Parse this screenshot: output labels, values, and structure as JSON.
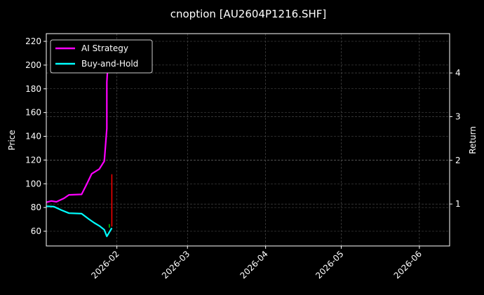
{
  "chart_data": {
    "type": "line",
    "title": "cnoption [AU2604P1216.SHF]",
    "ylabel": "Price",
    "y2label": "Return",
    "xlim": [
      "2026-01-04",
      "2026-06-13"
    ],
    "ylim": [
      47.6,
      226.5
    ],
    "y2lim": [
      0.04,
      4.9
    ],
    "x_ticks": [
      "2026-02-01",
      "2026-03-01",
      "2026-04-01",
      "2026-05-01",
      "2026-06-01"
    ],
    "x_tick_labels": [
      "2026-02",
      "2026-03",
      "2026-04",
      "2026-05",
      "2026-06"
    ],
    "y_ticks": [
      60,
      80,
      100,
      120,
      140,
      160,
      180,
      200,
      220
    ],
    "y2_ticks": [
      1,
      2,
      3,
      4
    ],
    "grid": true,
    "legend_placement": "top-left",
    "background": "#000000",
    "series": [
      {
        "name": "AI Strategy",
        "axis": "right",
        "color": "#ff00ff",
        "x": [
          "2026-01-04",
          "2026-01-06",
          "2026-01-08",
          "2026-01-11",
          "2026-01-13",
          "2026-01-18",
          "2026-01-20",
          "2026-01-22",
          "2026-01-25",
          "2026-01-27",
          "2026-01-28",
          "2026-01-28",
          "2026-01-29"
        ],
        "y": [
          1.04,
          1.07,
          1.05,
          1.13,
          1.21,
          1.22,
          1.45,
          1.69,
          1.8,
          1.98,
          2.73,
          3.79,
          4.75
        ]
      },
      {
        "name": "Buy-and-Hold",
        "axis": "right",
        "color": "#00ffff",
        "x": [
          "2026-01-04",
          "2026-01-07",
          "2026-01-10",
          "2026-01-13",
          "2026-01-18",
          "2026-01-21",
          "2026-01-23",
          "2026-01-25",
          "2026-01-27",
          "2026-01-28",
          "2026-01-30"
        ],
        "y": [
          0.95,
          0.94,
          0.86,
          0.79,
          0.78,
          0.65,
          0.57,
          0.5,
          0.41,
          0.26,
          0.45
        ]
      }
    ],
    "price_bars": [
      {
        "x": "2026-01-29",
        "low": 63,
        "high": 66,
        "color": "#00cc00"
      },
      {
        "x": "2026-01-30",
        "low": 64,
        "high": 108,
        "color": "#ff0000"
      }
    ]
  }
}
